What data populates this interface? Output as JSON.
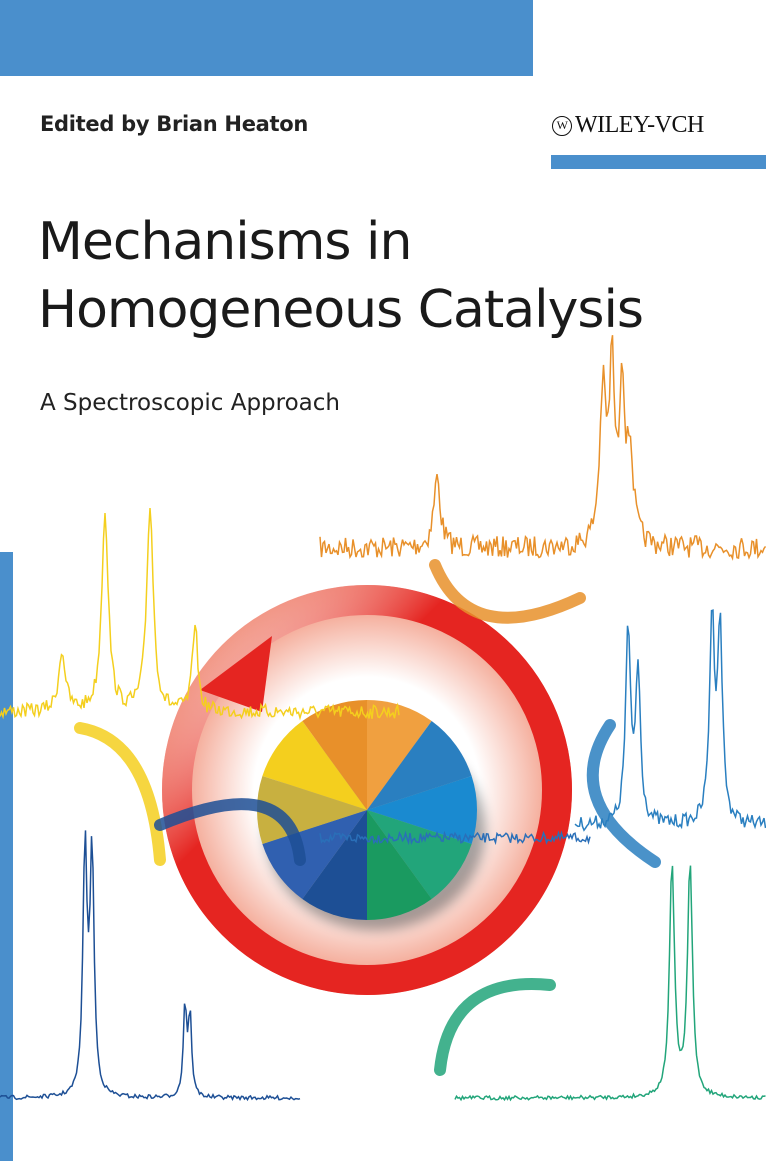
{
  "cover": {
    "editor": "Edited by Brian Heaton",
    "publisher": "WILEY-VCH",
    "title_line1": "Mechanisms in",
    "title_line2": "Homogeneous Catalysis",
    "subtitle": "A Spectroscopic Approach"
  },
  "colors": {
    "accent_blue": "#4a8fcc",
    "ring_red": "#e52521",
    "yellow": "#f4cf1e",
    "orange": "#e8902a",
    "blue": "#2a7fc0",
    "navy": "#1d4f95",
    "green": "#22a57a"
  }
}
